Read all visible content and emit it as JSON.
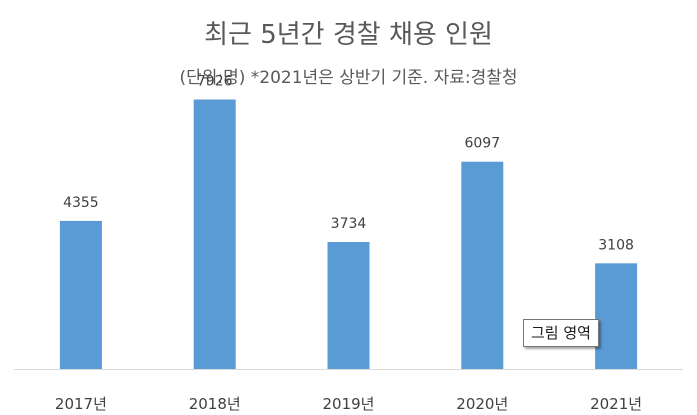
{
  "chart_data": {
    "type": "bar",
    "title": "최근 5년간 경찰 채용 인원",
    "subtitle": "(단위:명) *2021년은 상반기 기준. 자료:경찰청",
    "categories": [
      "2017년",
      "2018년",
      "2019년",
      "2020년",
      "2021년"
    ],
    "values": [
      4355,
      7926,
      3734,
      6097,
      3108
    ],
    "data_labels": [
      "4355",
      "7926",
      "3734",
      "6097",
      "3108"
    ],
    "ylim": [
      0,
      10000
    ],
    "grid": false,
    "legend": "none",
    "bar_color": "#5b9bd5",
    "axis_color": "#d9d9d9"
  },
  "tooltip": {
    "text": "그림 영역"
  }
}
